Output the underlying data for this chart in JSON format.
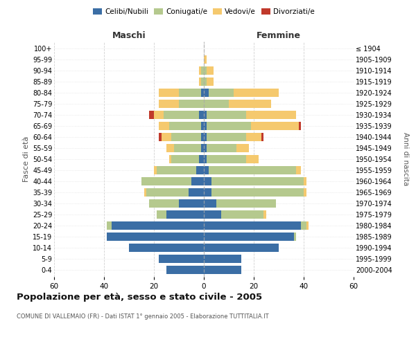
{
  "age_groups": [
    "0-4",
    "5-9",
    "10-14",
    "15-19",
    "20-24",
    "25-29",
    "30-34",
    "35-39",
    "40-44",
    "45-49",
    "50-54",
    "55-59",
    "60-64",
    "65-69",
    "70-74",
    "75-79",
    "80-84",
    "85-89",
    "90-94",
    "95-99",
    "100+"
  ],
  "birth_years": [
    "2000-2004",
    "1995-1999",
    "1990-1994",
    "1985-1989",
    "1980-1984",
    "1975-1979",
    "1970-1974",
    "1965-1969",
    "1960-1964",
    "1955-1959",
    "1950-1954",
    "1945-1949",
    "1940-1944",
    "1935-1939",
    "1930-1934",
    "1925-1929",
    "1920-1924",
    "1915-1919",
    "1910-1914",
    "1905-1909",
    "≤ 1904"
  ],
  "males": {
    "celibi": [
      15,
      18,
      30,
      39,
      37,
      15,
      10,
      6,
      5,
      3,
      2,
      1,
      1,
      1,
      2,
      0,
      1,
      0,
      0,
      0,
      0
    ],
    "coniugati": [
      0,
      0,
      0,
      0,
      2,
      4,
      12,
      17,
      20,
      16,
      11,
      11,
      12,
      13,
      14,
      10,
      9,
      1,
      1,
      0,
      0
    ],
    "vedovi": [
      0,
      0,
      0,
      0,
      0,
      0,
      0,
      1,
      0,
      1,
      1,
      3,
      4,
      4,
      4,
      8,
      8,
      1,
      1,
      0,
      0
    ],
    "divorziati": [
      0,
      0,
      0,
      0,
      0,
      0,
      0,
      0,
      0,
      0,
      0,
      0,
      1,
      0,
      2,
      0,
      0,
      0,
      0,
      0,
      0
    ]
  },
  "females": {
    "nubili": [
      15,
      15,
      30,
      36,
      39,
      7,
      5,
      3,
      3,
      2,
      1,
      1,
      1,
      1,
      1,
      0,
      2,
      0,
      0,
      0,
      0
    ],
    "coniugate": [
      0,
      0,
      0,
      1,
      2,
      17,
      24,
      37,
      37,
      35,
      16,
      12,
      16,
      18,
      16,
      10,
      10,
      1,
      1,
      0,
      0
    ],
    "vedove": [
      0,
      0,
      0,
      0,
      1,
      1,
      0,
      1,
      1,
      2,
      5,
      5,
      6,
      19,
      20,
      17,
      18,
      3,
      3,
      1,
      0
    ],
    "divorziate": [
      0,
      0,
      0,
      0,
      0,
      0,
      0,
      0,
      0,
      0,
      0,
      0,
      1,
      1,
      0,
      0,
      0,
      0,
      0,
      0,
      0
    ]
  },
  "color_celibi": "#3b6ea5",
  "color_coniugati": "#b5c98e",
  "color_vedovi": "#f5c96e",
  "color_divorziati": "#c0392b",
  "title": "Popolazione per età, sesso e stato civile - 2005",
  "subtitle": "COMUNE DI VALLEMAIO (FR) - Dati ISTAT 1° gennaio 2005 - Elaborazione TUTTITALIA.IT",
  "ylabel": "Fasce di età",
  "ylabel_right": "Anni di nascita",
  "xlabel_left": "Maschi",
  "xlabel_right": "Femmine",
  "xlim": 60,
  "bg_color": "#ffffff",
  "grid_color": "#cccccc"
}
